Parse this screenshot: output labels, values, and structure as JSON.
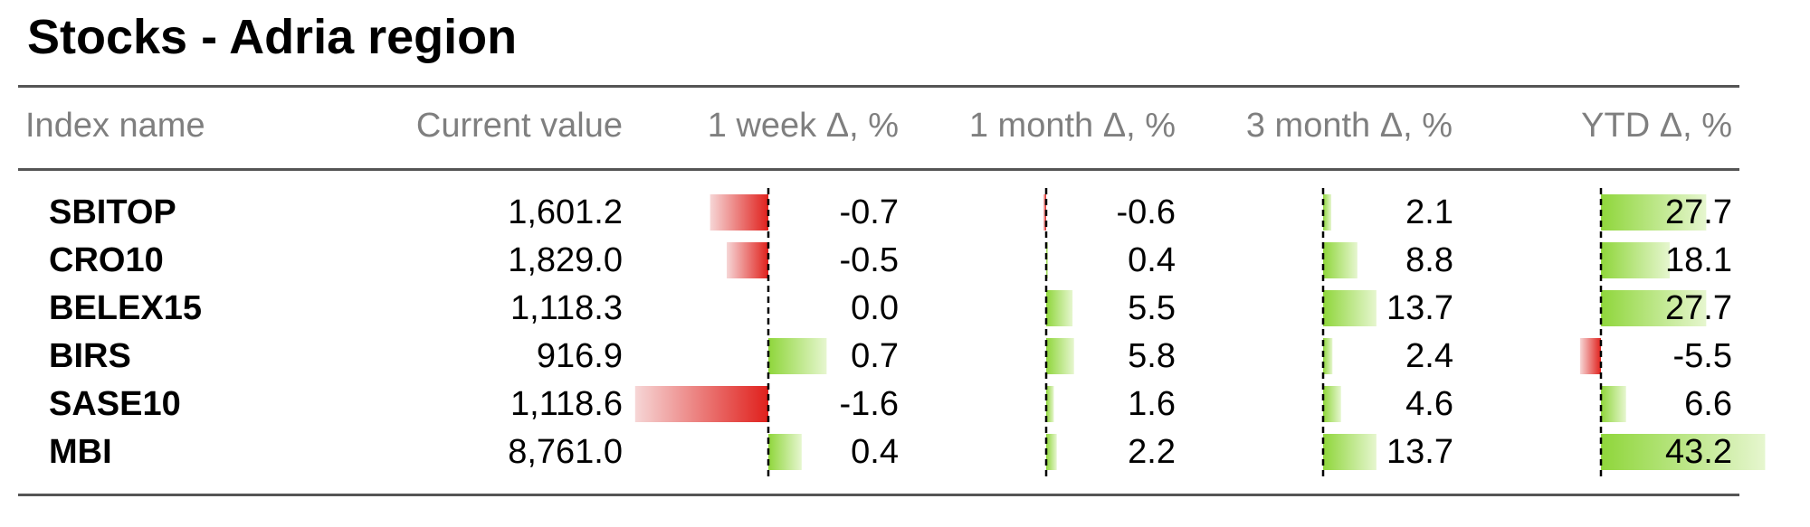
{
  "title": "Stocks - Adria region",
  "headers": [
    "Index name",
    "Current value",
    "1 week Δ, %",
    "1 month Δ, %",
    "3 month Δ, %",
    "YTD Δ, %"
  ],
  "colors": {
    "positive": "#8fd63b",
    "negative": "#e0201c",
    "rule": "#555555",
    "header": "#7f7f7f"
  },
  "chart_data": {
    "type": "table",
    "columns": [
      "Index name",
      "Current value",
      "1 week Δ, %",
      "1 month Δ, %",
      "3 month Δ, %",
      "YTD Δ, %"
    ],
    "rows": [
      {
        "name": "SBITOP",
        "value": "1,601.2",
        "deltas": [
          "-0.7",
          "-0.6",
          "2.1",
          "27.7"
        ]
      },
      {
        "name": "CRO10",
        "value": "1,829.0",
        "deltas": [
          "-0.5",
          "0.4",
          "8.8",
          "18.1"
        ]
      },
      {
        "name": "BELEX15",
        "value": "1,118.3",
        "deltas": [
          "0.0",
          "5.5",
          "13.7",
          "27.7"
        ]
      },
      {
        "name": "BIRS",
        "value": "916.9",
        "deltas": [
          "0.7",
          "5.8",
          "2.4",
          "-5.5"
        ]
      },
      {
        "name": "SASE10",
        "value": "1,118.6",
        "deltas": [
          "-1.6",
          "1.6",
          "4.6",
          "6.6"
        ]
      },
      {
        "name": "MBI",
        "value": "8,761.0",
        "deltas": [
          "0.4",
          "2.2",
          "13.7",
          "43.2"
        ]
      }
    ]
  }
}
